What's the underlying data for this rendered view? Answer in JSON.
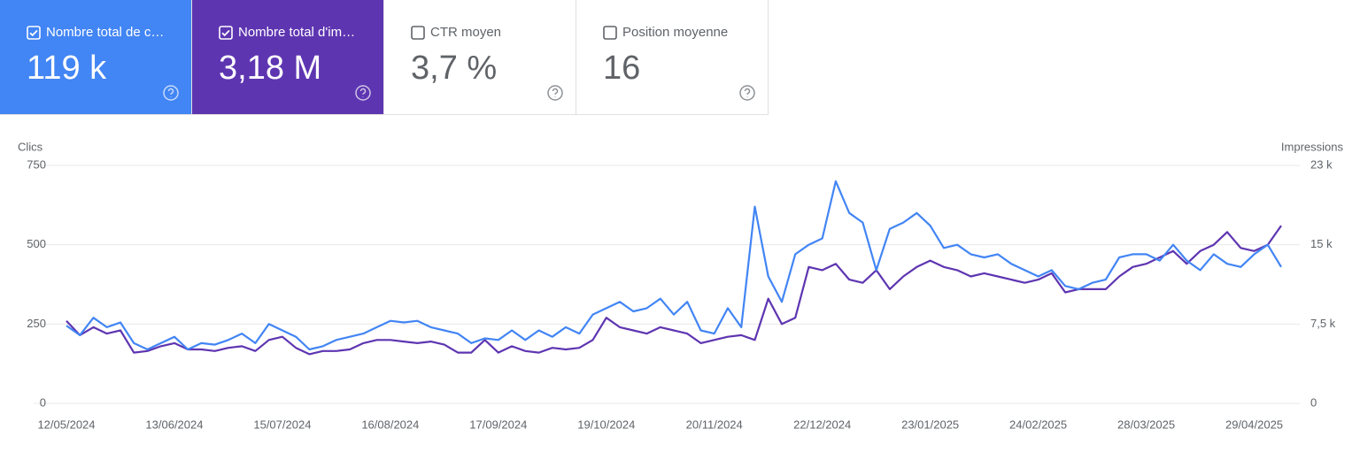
{
  "cards": [
    {
      "label": "Nombre total de c…",
      "value": "119 k",
      "selected": true,
      "color": "#4285f4"
    },
    {
      "label": "Nombre total d'im…",
      "value": "3,18 M",
      "selected": true,
      "color": "#5e35b1"
    },
    {
      "label": "CTR moyen",
      "value": "3,7 %",
      "selected": false,
      "color": "#ffffff"
    },
    {
      "label": "Position moyenne",
      "value": "16",
      "selected": false,
      "color": "#ffffff"
    }
  ],
  "chart_data": {
    "type": "line",
    "y_label": "Clics",
    "y2_label": "Impressions",
    "grid": true,
    "x": [
      "12/05/2024",
      "16/05/2024",
      "20/05/2024",
      "24/05/2024",
      "28/05/2024",
      "01/06/2024",
      "05/06/2024",
      "09/06/2024",
      "13/06/2024",
      "17/06/2024",
      "21/06/2024",
      "25/06/2024",
      "29/06/2024",
      "03/07/2024",
      "07/07/2024",
      "11/07/2024",
      "15/07/2024",
      "19/07/2024",
      "23/07/2024",
      "27/07/2024",
      "31/07/2024",
      "04/08/2024",
      "08/08/2024",
      "12/08/2024",
      "16/08/2024",
      "20/08/2024",
      "24/08/2024",
      "28/08/2024",
      "01/09/2024",
      "05/09/2024",
      "09/09/2024",
      "13/09/2024",
      "17/09/2024",
      "21/09/2024",
      "25/09/2024",
      "29/09/2024",
      "03/10/2024",
      "07/10/2024",
      "11/10/2024",
      "15/10/2024",
      "19/10/2024",
      "23/10/2024",
      "27/10/2024",
      "31/10/2024",
      "04/11/2024",
      "08/11/2024",
      "12/11/2024",
      "16/11/2024",
      "20/11/2024",
      "24/11/2024",
      "28/11/2024",
      "02/12/2024",
      "06/12/2024",
      "10/12/2024",
      "14/12/2024",
      "18/12/2024",
      "22/12/2024",
      "26/12/2024",
      "30/12/2024",
      "03/01/2025",
      "07/01/2025",
      "11/01/2025",
      "15/01/2025",
      "19/01/2025",
      "23/01/2025",
      "27/01/2025",
      "31/01/2025",
      "04/02/2025",
      "08/02/2025",
      "12/02/2025",
      "16/02/2025",
      "20/02/2025",
      "24/02/2025",
      "28/02/2025",
      "04/03/2025",
      "08/03/2025",
      "12/03/2025",
      "16/03/2025",
      "20/03/2025",
      "24/03/2025",
      "28/03/2025",
      "01/04/2025",
      "05/04/2025",
      "09/04/2025",
      "13/04/2025",
      "17/04/2025",
      "21/04/2025",
      "25/04/2025",
      "29/04/2025",
      "03/05/2025",
      "07/05/2025"
    ],
    "xlim": [
      "12/05/2024",
      "07/05/2025"
    ],
    "xticks": [
      "12/05/2024",
      "13/06/2024",
      "15/07/2024",
      "16/08/2024",
      "17/09/2024",
      "19/10/2024",
      "20/11/2024",
      "22/12/2024",
      "23/01/2025",
      "24/02/2025",
      "28/03/2025",
      "29/04/2025"
    ],
    "ylim": [
      0,
      750
    ],
    "yticks": [
      0,
      250,
      500,
      750
    ],
    "y2lim": [
      0,
      22500
    ],
    "y2ticks": [
      0,
      {
        "value": 7500,
        "label": "7,5 k"
      },
      {
        "value": 15000,
        "label": "15 k"
      },
      {
        "value": 22500,
        "label": "23 k"
      }
    ],
    "series": [
      {
        "name": "Impressions",
        "color": "#5e35b1",
        "axis": "y2",
        "values": [
          7800,
          6450,
          7200,
          6600,
          6900,
          4800,
          4950,
          5400,
          5700,
          5100,
          5100,
          4950,
          5250,
          5400,
          4950,
          6000,
          6300,
          5250,
          4650,
          4950,
          4950,
          5100,
          5700,
          6000,
          6000,
          5850,
          5700,
          5850,
          5550,
          4800,
          4800,
          6000,
          4800,
          5400,
          4950,
          4800,
          5250,
          5100,
          5250,
          6000,
          8100,
          7200,
          6900,
          6600,
          7200,
          6900,
          6600,
          5700,
          6000,
          6300,
          6450,
          6000,
          9900,
          7500,
          8100,
          12900,
          12600,
          13200,
          11700,
          11400,
          12600,
          10800,
          12000,
          12900,
          13500,
          12900,
          12600,
          12000,
          12300,
          12000,
          11700,
          11400,
          11700,
          12300,
          10500,
          10800,
          10800,
          10800,
          12000,
          12900,
          13200,
          13800,
          14400,
          13200,
          14400,
          15000,
          16200,
          14700,
          14400,
          15000,
          16800
        ]
      },
      {
        "name": "Clics",
        "color": "#4285f4",
        "axis": "y",
        "values": [
          245,
          215,
          270,
          240,
          255,
          190,
          170,
          190,
          210,
          170,
          190,
          185,
          200,
          220,
          190,
          250,
          230,
          210,
          170,
          180,
          200,
          210,
          220,
          240,
          260,
          255,
          260,
          240,
          230,
          220,
          190,
          205,
          200,
          230,
          200,
          230,
          210,
          240,
          220,
          280,
          300,
          320,
          290,
          300,
          330,
          280,
          320,
          230,
          220,
          300,
          240,
          620,
          400,
          320,
          470,
          500,
          520,
          700,
          600,
          570,
          420,
          550,
          570,
          600,
          560,
          490,
          500,
          470,
          460,
          470,
          440,
          420,
          400,
          420,
          370,
          360,
          380,
          390,
          460,
          470,
          470,
          450,
          500,
          450,
          420,
          470,
          440,
          430,
          470,
          500,
          430
        ]
      }
    ]
  }
}
